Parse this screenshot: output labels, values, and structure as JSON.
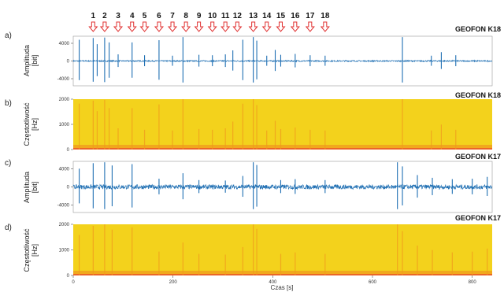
{
  "chart_data": {
    "type": "multi-panel time series and spectrogram",
    "event_markers": {
      "labels": [
        "1",
        "2",
        "3",
        "4",
        "5",
        "6",
        "7",
        "8",
        "9",
        "10",
        "11",
        "12",
        "13",
        "14",
        "15",
        "16",
        "17",
        "18"
      ],
      "times_s": [
        40,
        63,
        90,
        118,
        143,
        172,
        199,
        226,
        252,
        279,
        305,
        329,
        361,
        388,
        416,
        445,
        475,
        505
      ],
      "arrow_color": "#e03030"
    },
    "x_axis": {
      "label": "Czas [s]",
      "ticks": [
        "0",
        "200",
        "400",
        "600",
        "800"
      ],
      "tick_values": [
        0,
        200,
        400,
        600,
        800
      ],
      "range": [
        0,
        840
      ]
    },
    "panels": [
      {
        "letter": "a)",
        "station": "GEOFON K18",
        "type": "waveform",
        "ylabel_main": "Amplituda",
        "ylabel_unit": "[bit]",
        "yticks": [
          "4000",
          "0",
          "-4000"
        ],
        "ylim": [
          -5600,
          5600
        ],
        "line_color": "#1f6fb3",
        "noise_level": 150,
        "spikes": [
          {
            "t": 12,
            "a": 4800
          },
          {
            "t": 40,
            "a": 5200
          },
          {
            "t": 48,
            "a": 3800
          },
          {
            "t": 63,
            "a": 5300
          },
          {
            "t": 72,
            "a": 4200
          },
          {
            "t": 90,
            "a": 1500
          },
          {
            "t": 118,
            "a": 4200
          },
          {
            "t": 143,
            "a": 1300
          },
          {
            "t": 172,
            "a": 4700
          },
          {
            "t": 199,
            "a": 1200
          },
          {
            "t": 220,
            "a": 5400
          },
          {
            "t": 252,
            "a": 1400
          },
          {
            "t": 279,
            "a": 1300
          },
          {
            "t": 305,
            "a": 1500
          },
          {
            "t": 320,
            "a": 2400
          },
          {
            "t": 340,
            "a": 4800
          },
          {
            "t": 361,
            "a": 5400
          },
          {
            "t": 368,
            "a": 4600
          },
          {
            "t": 388,
            "a": 1200
          },
          {
            "t": 405,
            "a": 2500
          },
          {
            "t": 416,
            "a": 1400
          },
          {
            "t": 445,
            "a": 1600
          },
          {
            "t": 475,
            "a": 1300
          },
          {
            "t": 505,
            "a": 1200
          },
          {
            "t": 660,
            "a": 5400
          },
          {
            "t": 718,
            "a": 1200
          },
          {
            "t": 738,
            "a": 2000
          },
          {
            "t": 767,
            "a": 1300
          }
        ]
      },
      {
        "letter": "b)",
        "station": "GEOFON K18",
        "type": "spectrogram",
        "ylabel_main": "Częstotliwość",
        "ylabel_unit": "[Hz]",
        "yticks": [
          "2000",
          "1000",
          "0"
        ],
        "ylim": [
          0,
          2000
        ],
        "colors": [
          "#f3d21c",
          "#f09a1e",
          "#e8552a"
        ]
      },
      {
        "letter": "c)",
        "station": "GEOFON K17",
        "type": "waveform",
        "ylabel_main": "Amplituda",
        "ylabel_unit": "[bit]",
        "yticks": [
          "4000",
          "0",
          "-4000"
        ],
        "ylim": [
          -5600,
          5600
        ],
        "line_color": "#1f6fb3",
        "noise_level": 500,
        "spikes": [
          {
            "t": 12,
            "a": 4000
          },
          {
            "t": 40,
            "a": 5200
          },
          {
            "t": 63,
            "a": 5400
          },
          {
            "t": 78,
            "a": 4700
          },
          {
            "t": 118,
            "a": 5000
          },
          {
            "t": 172,
            "a": 1800
          },
          {
            "t": 220,
            "a": 3000
          },
          {
            "t": 252,
            "a": 1500
          },
          {
            "t": 305,
            "a": 1400
          },
          {
            "t": 340,
            "a": 2400
          },
          {
            "t": 361,
            "a": 5400
          },
          {
            "t": 368,
            "a": 4800
          },
          {
            "t": 416,
            "a": 1500
          },
          {
            "t": 445,
            "a": 1700
          },
          {
            "t": 505,
            "a": 1500
          },
          {
            "t": 650,
            "a": 5400
          },
          {
            "t": 660,
            "a": 4500
          },
          {
            "t": 690,
            "a": 2600
          },
          {
            "t": 720,
            "a": 2000
          },
          {
            "t": 760,
            "a": 1700
          },
          {
            "t": 800,
            "a": 1800
          },
          {
            "t": 830,
            "a": 2200
          }
        ]
      },
      {
        "letter": "d)",
        "station": "GEOFON K17",
        "type": "spectrogram",
        "ylabel_main": "Częstotliwość",
        "ylabel_unit": "[Hz]",
        "yticks": [
          "2000",
          "1000",
          "0"
        ],
        "ylim": [
          0,
          2000
        ],
        "colors": [
          "#f3d21c",
          "#f09a1e",
          "#e8552a"
        ]
      }
    ]
  }
}
